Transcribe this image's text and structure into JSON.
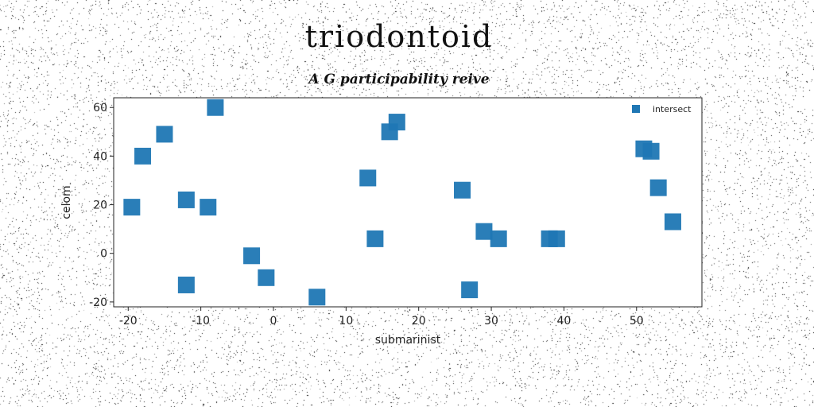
{
  "chart_data": {
    "type": "scatter",
    "title": "triodontoid",
    "subtitle": "A G participability reive",
    "xlabel": "submarinist",
    "ylabel": "celom",
    "xlim": [
      -22,
      59
    ],
    "ylim": [
      -22,
      64
    ],
    "xticks": [
      -20,
      -10,
      0,
      10,
      20,
      30,
      40,
      50
    ],
    "yticks": [
      -20,
      0,
      20,
      40,
      60
    ],
    "grid": false,
    "legend_position": "top-right",
    "marker": "square",
    "series": [
      {
        "name": "intersect",
        "color": "#1f77b4",
        "points": [
          [
            -19.5,
            19
          ],
          [
            -18,
            40
          ],
          [
            -15,
            49
          ],
          [
            -12,
            22
          ],
          [
            -12,
            -13
          ],
          [
            -9,
            19
          ],
          [
            -8,
            60
          ],
          [
            -3,
            -1
          ],
          [
            -1,
            -10
          ],
          [
            6,
            -18
          ],
          [
            13,
            31
          ],
          [
            14,
            6
          ],
          [
            16,
            50
          ],
          [
            17,
            54
          ],
          [
            26,
            26
          ],
          [
            27,
            -15
          ],
          [
            29,
            9
          ],
          [
            31,
            6
          ],
          [
            38,
            6
          ],
          [
            39,
            6
          ],
          [
            51,
            43
          ],
          [
            52,
            42
          ],
          [
            53,
            27
          ],
          [
            55,
            13
          ]
        ]
      }
    ]
  }
}
